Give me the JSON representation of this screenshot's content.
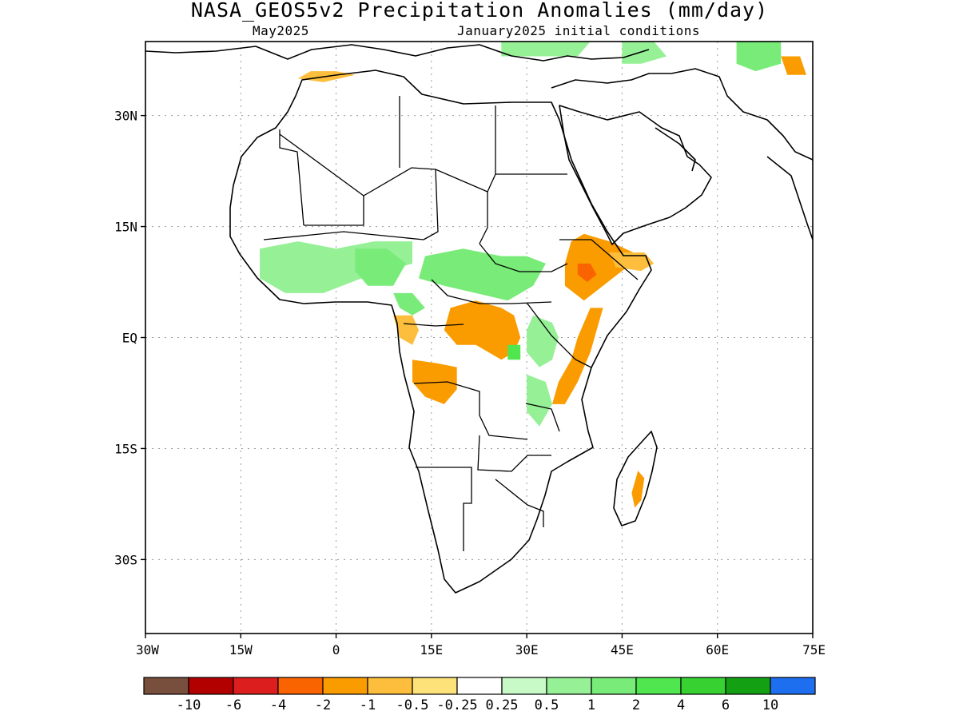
{
  "title": "NASA_GEOS5v2 Precipitation Anomalies (mm/day)",
  "subtitle_left": "May2025",
  "subtitle_right": "January2025 initial conditions",
  "map": {
    "lon_range": [
      -30,
      75
    ],
    "lat_range": [
      -40,
      40
    ],
    "grid": "dotted",
    "lon_ticks": [
      {
        "value": -30,
        "label": "30W"
      },
      {
        "value": -15,
        "label": "15W"
      },
      {
        "value": 0,
        "label": "0"
      },
      {
        "value": 15,
        "label": "15E"
      },
      {
        "value": 30,
        "label": "30E"
      },
      {
        "value": 45,
        "label": "45E"
      },
      {
        "value": 60,
        "label": "60E"
      },
      {
        "value": 75,
        "label": "75E"
      }
    ],
    "lat_ticks": [
      {
        "value": 30,
        "label": "30N"
      },
      {
        "value": 15,
        "label": "15N"
      },
      {
        "value": 0,
        "label": "EQ"
      },
      {
        "value": -15,
        "label": "15S"
      },
      {
        "value": -30,
        "label": "30S"
      }
    ]
  },
  "anomaly_regions": [
    {
      "name": "horn-of-africa-dry",
      "category": "-1",
      "lon_lat": [
        [
          39,
          14
        ],
        [
          43,
          13
        ],
        [
          48,
          11
        ],
        [
          45,
          9
        ],
        [
          42,
          7
        ],
        [
          39,
          5
        ],
        [
          36,
          7
        ],
        [
          36,
          10
        ],
        [
          37,
          13
        ]
      ]
    },
    {
      "name": "ethiopia-dry-core",
      "category": "-2",
      "lon_lat": [
        [
          38,
          10
        ],
        [
          40,
          10
        ],
        [
          41,
          8.5
        ],
        [
          39.5,
          7.5
        ],
        [
          38,
          8.5
        ]
      ]
    },
    {
      "name": "somalia-dry",
      "category": "-0.5",
      "lon_lat": [
        [
          43,
          11.5
        ],
        [
          48.5,
          11.5
        ],
        [
          50,
          10
        ],
        [
          48,
          9
        ],
        [
          44,
          9.5
        ]
      ]
    },
    {
      "name": "east-africa-coast-dry",
      "category": "-1",
      "lon_lat": [
        [
          42,
          4
        ],
        [
          41,
          1
        ],
        [
          40,
          -2
        ],
        [
          38,
          -6
        ],
        [
          36,
          -9
        ],
        [
          34,
          -9
        ],
        [
          35,
          -6
        ],
        [
          37,
          -3
        ],
        [
          38,
          0
        ],
        [
          39,
          2
        ],
        [
          40,
          4
        ]
      ]
    },
    {
      "name": "congo-basin-dry",
      "category": "-1",
      "lon_lat": [
        [
          18,
          4
        ],
        [
          22,
          5
        ],
        [
          26,
          4
        ],
        [
          28,
          3
        ],
        [
          29,
          0
        ],
        [
          28,
          -2
        ],
        [
          26,
          -3
        ],
        [
          24,
          -2
        ],
        [
          22,
          -1
        ],
        [
          19,
          -1
        ],
        [
          17,
          1
        ]
      ]
    },
    {
      "name": "angola-north-dry",
      "category": "-1",
      "lon_lat": [
        [
          12,
          -3
        ],
        [
          16,
          -3.5
        ],
        [
          19,
          -4
        ],
        [
          19,
          -7
        ],
        [
          17,
          -9
        ],
        [
          14,
          -8
        ],
        [
          12,
          -6
        ]
      ]
    },
    {
      "name": "gabon-dry",
      "category": "-0.5",
      "lon_lat": [
        [
          9,
          3
        ],
        [
          12,
          3
        ],
        [
          13,
          1
        ],
        [
          12,
          -1
        ],
        [
          10,
          0
        ]
      ]
    },
    {
      "name": "madagascar-dry",
      "category": "-1",
      "lon_lat": [
        [
          47.5,
          -18
        ],
        [
          48.5,
          -19
        ],
        [
          48,
          -22
        ],
        [
          47,
          -23
        ],
        [
          46.5,
          -21
        ]
      ]
    },
    {
      "name": "morocco-dry",
      "category": "-0.5",
      "lon_lat": [
        [
          -6,
          35
        ],
        [
          -2,
          34.5
        ],
        [
          3,
          35.5
        ],
        [
          0,
          36
        ],
        [
          -4,
          36
        ]
      ]
    },
    {
      "name": "iran-dry",
      "category": "-1",
      "lon_lat": [
        [
          70,
          38
        ],
        [
          73,
          38
        ],
        [
          74,
          35.5
        ],
        [
          71,
          35.5
        ]
      ]
    },
    {
      "name": "sahel-west-wet",
      "category": "0.5",
      "lon_lat": [
        [
          -12,
          12
        ],
        [
          -6,
          13
        ],
        [
          0,
          12
        ],
        [
          6,
          13
        ],
        [
          12,
          13
        ],
        [
          12,
          10
        ],
        [
          8,
          9
        ],
        [
          4,
          8
        ],
        [
          -2,
          6
        ],
        [
          -8,
          6
        ],
        [
          -12,
          8
        ]
      ]
    },
    {
      "name": "central-sahel-wet",
      "category": "1",
      "lon_lat": [
        [
          14,
          11
        ],
        [
          20,
          12
        ],
        [
          26,
          11
        ],
        [
          30,
          11
        ],
        [
          33,
          10
        ],
        [
          31,
          7
        ],
        [
          27,
          5
        ],
        [
          22,
          6
        ],
        [
          17,
          7
        ],
        [
          13,
          8
        ]
      ]
    },
    {
      "name": "nigeria-wet",
      "category": "1",
      "lon_lat": [
        [
          3,
          12
        ],
        [
          8,
          12
        ],
        [
          11,
          10
        ],
        [
          9,
          7
        ],
        [
          5,
          7
        ],
        [
          3,
          9
        ]
      ]
    },
    {
      "name": "cameroon-wet",
      "category": "1",
      "lon_lat": [
        [
          9,
          6
        ],
        [
          12,
          6
        ],
        [
          14,
          4
        ],
        [
          12,
          3
        ],
        [
          10,
          4
        ]
      ]
    },
    {
      "name": "uganda-kenya-wet",
      "category": "0.5",
      "lon_lat": [
        [
          31,
          3
        ],
        [
          34,
          2
        ],
        [
          35,
          0
        ],
        [
          34,
          -3
        ],
        [
          32,
          -4
        ],
        [
          30,
          -2
        ],
        [
          30,
          1
        ]
      ]
    },
    {
      "name": "tanzania-wet",
      "category": "0.5",
      "lon_lat": [
        [
          30,
          -5
        ],
        [
          33,
          -6
        ],
        [
          34,
          -9
        ],
        [
          32,
          -12
        ],
        [
          30,
          -10
        ]
      ]
    },
    {
      "name": "lake-victoria-wet",
      "category": "2",
      "lon_lat": [
        [
          27,
          -1
        ],
        [
          29,
          -1
        ],
        [
          29,
          -3
        ],
        [
          27,
          -3
        ]
      ]
    },
    {
      "name": "turkey-wet",
      "category": "0.5",
      "lon_lat": [
        [
          26,
          40
        ],
        [
          34,
          40
        ],
        [
          40,
          40
        ],
        [
          38,
          38
        ],
        [
          30,
          38
        ],
        [
          26,
          38
        ]
      ]
    },
    {
      "name": "caspian-wet",
      "category": "0.5",
      "lon_lat": [
        [
          45,
          40
        ],
        [
          50,
          40
        ],
        [
          52,
          38
        ],
        [
          48,
          37
        ],
        [
          45,
          37
        ]
      ]
    },
    {
      "name": "turkmen-wet",
      "category": "1",
      "lon_lat": [
        [
          63,
          40
        ],
        [
          70,
          40
        ],
        [
          70,
          37
        ],
        [
          66,
          36
        ],
        [
          63,
          37
        ]
      ]
    }
  ],
  "colorbar": {
    "colors": [
      "#784e3c",
      "#b20000",
      "#dc1e1e",
      "#fa6400",
      "#fa9c00",
      "#fcbe3c",
      "#fde27a",
      "#ffffff",
      "#c8fac8",
      "#96f096",
      "#78eb78",
      "#50e650",
      "#37d232",
      "#13a013",
      "#1e6ef0"
    ],
    "labels": [
      "-10",
      "-6",
      "-4",
      "-2",
      "-1",
      "-0.5",
      "-0.25",
      "0.25",
      "0.5",
      "1",
      "2",
      "4",
      "6",
      "10"
    ]
  },
  "category_colors": {
    "-10": "#784e3c",
    "-6": "#b20000",
    "-4": "#dc1e1e",
    "-2": "#fa6400",
    "-1": "#fa9c00",
    "-0.5": "#fcbe3c",
    "-0.25": "#fde27a",
    "0.25": "#c8fac8",
    "0.5": "#96f096",
    "1": "#78eb78",
    "2": "#50e650",
    "4": "#37d232",
    "6": "#13a013",
    "10": "#1e6ef0"
  }
}
